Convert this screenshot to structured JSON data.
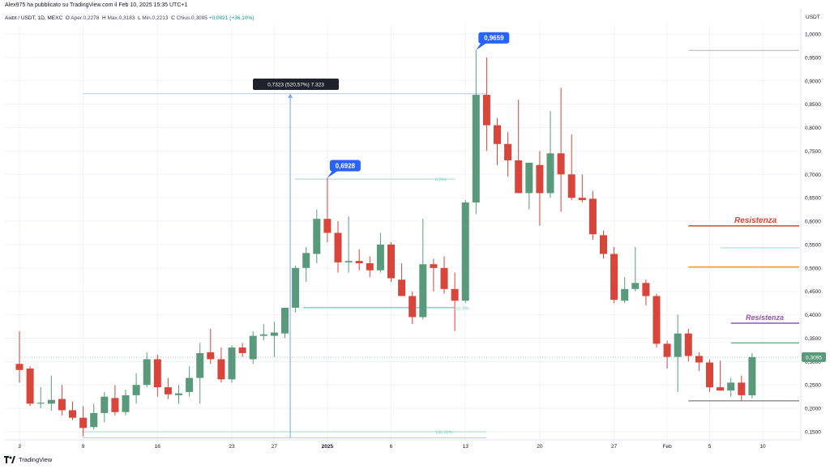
{
  "header": {
    "published": "Alex975 ha pubblicato su TradingView.com il Feb 10, 2025 15:35 UTC+1",
    "symbol": "Aixbt / USDT, 1D, MEXC",
    "open_label": "O",
    "open": "Aper.0,2278",
    "high_label": "H",
    "high": "Max.0,3183",
    "low_label": "L",
    "low": "Min.0,2213",
    "close_label": "C",
    "close": "Chius.0,3095",
    "change": "+0,0821 (+36,10%)"
  },
  "footer": {
    "brand": "TradingView"
  },
  "colors": {
    "up": "#5a9a7c",
    "down": "#d9453a",
    "blue": "#2962ff",
    "price_tag": "#5a9a7c"
  },
  "chart_data": {
    "type": "candlestick",
    "y_axis": {
      "currency": "USDT",
      "ticks": [
        "1,0000",
        "0,9500",
        "0,9000",
        "0,8500",
        "0,8000",
        "0,7500",
        "0,7000",
        "0,6500",
        "0,6000",
        "0,5500",
        "0,5000",
        "0,4500",
        "0,4000",
        "0,3500",
        "0,3000",
        "0,2500",
        "0,2000",
        "0,1500"
      ],
      "min": 0.13,
      "max": 1.02
    },
    "x_axis": {
      "ticks": [
        {
          "label": "3",
          "i": 0
        },
        {
          "label": "9",
          "i": 6
        },
        {
          "label": "16",
          "i": 13
        },
        {
          "label": "23",
          "i": 20
        },
        {
          "label": "27",
          "i": 24
        },
        {
          "label": "2025",
          "i": 29
        },
        {
          "label": "6",
          "i": 35
        },
        {
          "label": "13",
          "i": 42
        },
        {
          "label": "20",
          "i": 49
        },
        {
          "label": "27",
          "i": 56
        },
        {
          "label": "Feb",
          "i": 61
        },
        {
          "label": "5",
          "i": 65
        },
        {
          "label": "10",
          "i": 70
        }
      ]
    },
    "candles": [
      {
        "o": 0.295,
        "h": 0.365,
        "l": 0.255,
        "c": 0.282
      },
      {
        "o": 0.285,
        "h": 0.29,
        "l": 0.205,
        "c": 0.21
      },
      {
        "o": 0.21,
        "h": 0.245,
        "l": 0.2,
        "c": 0.212
      },
      {
        "o": 0.21,
        "h": 0.27,
        "l": 0.195,
        "c": 0.218
      },
      {
        "o": 0.22,
        "h": 0.25,
        "l": 0.185,
        "c": 0.196
      },
      {
        "o": 0.196,
        "h": 0.215,
        "l": 0.175,
        "c": 0.18
      },
      {
        "o": 0.18,
        "h": 0.205,
        "l": 0.14,
        "c": 0.158
      },
      {
        "o": 0.16,
        "h": 0.21,
        "l": 0.155,
        "c": 0.19
      },
      {
        "o": 0.19,
        "h": 0.235,
        "l": 0.17,
        "c": 0.225
      },
      {
        "o": 0.222,
        "h": 0.25,
        "l": 0.185,
        "c": 0.192
      },
      {
        "o": 0.192,
        "h": 0.24,
        "l": 0.185,
        "c": 0.228
      },
      {
        "o": 0.228,
        "h": 0.275,
        "l": 0.21,
        "c": 0.25
      },
      {
        "o": 0.25,
        "h": 0.32,
        "l": 0.245,
        "c": 0.305
      },
      {
        "o": 0.305,
        "h": 0.315,
        "l": 0.225,
        "c": 0.245
      },
      {
        "o": 0.245,
        "h": 0.265,
        "l": 0.22,
        "c": 0.23
      },
      {
        "o": 0.228,
        "h": 0.25,
        "l": 0.21,
        "c": 0.232
      },
      {
        "o": 0.235,
        "h": 0.29,
        "l": 0.225,
        "c": 0.265
      },
      {
        "o": 0.265,
        "h": 0.34,
        "l": 0.21,
        "c": 0.318
      },
      {
        "o": 0.32,
        "h": 0.37,
        "l": 0.295,
        "c": 0.305
      },
      {
        "o": 0.305,
        "h": 0.33,
        "l": 0.255,
        "c": 0.262
      },
      {
        "o": 0.262,
        "h": 0.335,
        "l": 0.255,
        "c": 0.33
      },
      {
        "o": 0.33,
        "h": 0.34,
        "l": 0.31,
        "c": 0.318
      },
      {
        "o": 0.305,
        "h": 0.365,
        "l": 0.295,
        "c": 0.355
      },
      {
        "o": 0.355,
        "h": 0.38,
        "l": 0.345,
        "c": 0.358
      },
      {
        "o": 0.355,
        "h": 0.385,
        "l": 0.31,
        "c": 0.362
      },
      {
        "o": 0.36,
        "h": 0.415,
        "l": 0.35,
        "c": 0.415
      },
      {
        "o": 0.415,
        "h": 0.505,
        "l": 0.405,
        "c": 0.5
      },
      {
        "o": 0.5,
        "h": 0.545,
        "l": 0.47,
        "c": 0.532
      },
      {
        "o": 0.53,
        "h": 0.625,
        "l": 0.51,
        "c": 0.605
      },
      {
        "o": 0.605,
        "h": 0.6928,
        "l": 0.555,
        "c": 0.575
      },
      {
        "o": 0.575,
        "h": 0.6,
        "l": 0.49,
        "c": 0.512
      },
      {
        "o": 0.512,
        "h": 0.61,
        "l": 0.49,
        "c": 0.515
      },
      {
        "o": 0.515,
        "h": 0.54,
        "l": 0.495,
        "c": 0.51
      },
      {
        "o": 0.51,
        "h": 0.525,
        "l": 0.48,
        "c": 0.495
      },
      {
        "o": 0.495,
        "h": 0.575,
        "l": 0.49,
        "c": 0.55
      },
      {
        "o": 0.55,
        "h": 0.555,
        "l": 0.47,
        "c": 0.478
      },
      {
        "o": 0.475,
        "h": 0.51,
        "l": 0.44,
        "c": 0.44
      },
      {
        "o": 0.44,
        "h": 0.45,
        "l": 0.38,
        "c": 0.395
      },
      {
        "o": 0.395,
        "h": 0.605,
        "l": 0.39,
        "c": 0.508
      },
      {
        "o": 0.508,
        "h": 0.52,
        "l": 0.45,
        "c": 0.5
      },
      {
        "o": 0.5,
        "h": 0.525,
        "l": 0.445,
        "c": 0.455
      },
      {
        "o": 0.455,
        "h": 0.49,
        "l": 0.365,
        "c": 0.43
      },
      {
        "o": 0.43,
        "h": 0.645,
        "l": 0.425,
        "c": 0.64
      },
      {
        "o": 0.64,
        "h": 0.9659,
        "l": 0.615,
        "c": 0.87
      },
      {
        "o": 0.87,
        "h": 0.95,
        "l": 0.75,
        "c": 0.805
      },
      {
        "o": 0.805,
        "h": 0.82,
        "l": 0.72,
        "c": 0.765
      },
      {
        "o": 0.765,
        "h": 0.79,
        "l": 0.695,
        "c": 0.73
      },
      {
        "o": 0.73,
        "h": 0.86,
        "l": 0.66,
        "c": 0.66
      },
      {
        "o": 0.66,
        "h": 0.72,
        "l": 0.625,
        "c": 0.725
      },
      {
        "o": 0.72,
        "h": 0.75,
        "l": 0.59,
        "c": 0.66
      },
      {
        "o": 0.66,
        "h": 0.835,
        "l": 0.65,
        "c": 0.745
      },
      {
        "o": 0.745,
        "h": 0.885,
        "l": 0.62,
        "c": 0.7
      },
      {
        "o": 0.7,
        "h": 0.785,
        "l": 0.645,
        "c": 0.65
      },
      {
        "o": 0.65,
        "h": 0.7,
        "l": 0.64,
        "c": 0.645
      },
      {
        "o": 0.648,
        "h": 0.665,
        "l": 0.56,
        "c": 0.572
      },
      {
        "o": 0.57,
        "h": 0.58,
        "l": 0.52,
        "c": 0.53
      },
      {
        "o": 0.53,
        "h": 0.545,
        "l": 0.425,
        "c": 0.432
      },
      {
        "o": 0.43,
        "h": 0.48,
        "l": 0.425,
        "c": 0.455
      },
      {
        "o": 0.455,
        "h": 0.545,
        "l": 0.45,
        "c": 0.468
      },
      {
        "o": 0.468,
        "h": 0.475,
        "l": 0.42,
        "c": 0.44
      },
      {
        "o": 0.44,
        "h": 0.445,
        "l": 0.33,
        "c": 0.338
      },
      {
        "o": 0.338,
        "h": 0.345,
        "l": 0.285,
        "c": 0.31
      },
      {
        "o": 0.31,
        "h": 0.4,
        "l": 0.235,
        "c": 0.36
      },
      {
        "o": 0.36,
        "h": 0.37,
        "l": 0.3,
        "c": 0.312
      },
      {
        "o": 0.312,
        "h": 0.32,
        "l": 0.28,
        "c": 0.298
      },
      {
        "o": 0.298,
        "h": 0.305,
        "l": 0.235,
        "c": 0.245
      },
      {
        "o": 0.245,
        "h": 0.302,
        "l": 0.24,
        "c": 0.238
      },
      {
        "o": 0.238,
        "h": 0.265,
        "l": 0.225,
        "c": 0.255
      },
      {
        "o": 0.255,
        "h": 0.27,
        "l": 0.215,
        "c": 0.228
      },
      {
        "o": 0.2278,
        "h": 0.3183,
        "l": 0.2213,
        "c": 0.3095
      }
    ],
    "annotations": {
      "measure_label": "0,7323 (520,57%) 7.323",
      "callouts": [
        {
          "text": "0,6928",
          "i": 29,
          "price": 0.6928
        },
        {
          "text": "0,9659",
          "i": 43,
          "price": 0.9659
        }
      ],
      "current_price": "0,3095",
      "resistances": [
        {
          "text": "Resistenza",
          "price": 0.59,
          "color": "#d9453a",
          "from_i": 64
        },
        {
          "text": "Resistenza",
          "price": 0.382,
          "color": "#9c4fc0",
          "from_i": 66
        }
      ],
      "fib_labels": [
        {
          "text": "0,000",
          "price": 0.69,
          "i": 39
        },
        {
          "text": "61,8%",
          "price": 0.415,
          "i": 41
        },
        {
          "text": "100,00%",
          "price": 0.15,
          "i": 39
        }
      ]
    }
  }
}
